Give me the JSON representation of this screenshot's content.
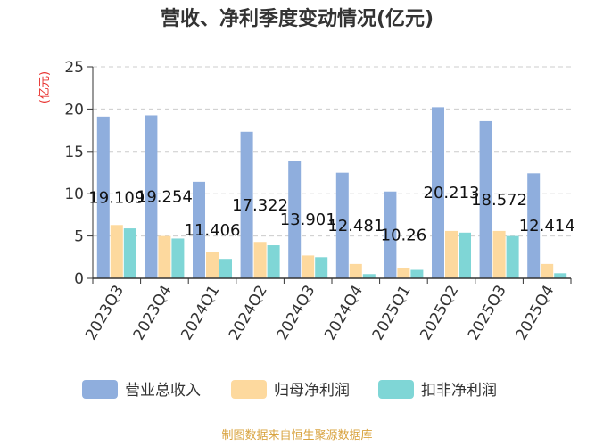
{
  "chart_data": {
    "type": "bar",
    "title": "营收、净利季度变动情况(亿元)",
    "unit_label": "(亿元)",
    "categories": [
      "2023Q3",
      "2023Q4",
      "2024Q1",
      "2024Q2",
      "2024Q3",
      "2024Q4",
      "2025Q1",
      "2025Q2",
      "2025Q3",
      "2025Q4"
    ],
    "series": [
      {
        "name": "营业总收入",
        "color": "#8FAEDD",
        "values": [
          19.109,
          19.254,
          11.406,
          17.322,
          13.901,
          12.481,
          10.26,
          20.213,
          18.572,
          12.414
        ]
      },
      {
        "name": "归母净利润",
        "color": "#FDD99E",
        "values": [
          6.3,
          5.0,
          3.1,
          4.3,
          2.7,
          1.7,
          1.2,
          5.6,
          5.6,
          1.7
        ]
      },
      {
        "name": "扣非净利润",
        "color": "#7FD6D6",
        "values": [
          5.9,
          4.7,
          2.3,
          3.9,
          2.5,
          0.5,
          1.0,
          5.4,
          5.0,
          0.6
        ]
      }
    ],
    "data_labels": [
      "19.109",
      "19.254",
      "11.406",
      "17.322",
      "13.901",
      "12.481",
      "10.26",
      "20.213",
      "18.572",
      "12.414"
    ],
    "ylim": [
      0,
      25
    ],
    "yticks": [
      0,
      5,
      10,
      15,
      20,
      25
    ],
    "grid": true,
    "legend_position": "bottom",
    "source": "制图数据来自恒生聚源数据库"
  },
  "colors": {
    "unit": "#E8322F",
    "source": "#D9A441",
    "axis": "#333333",
    "grid": "#CCCCCC"
  }
}
